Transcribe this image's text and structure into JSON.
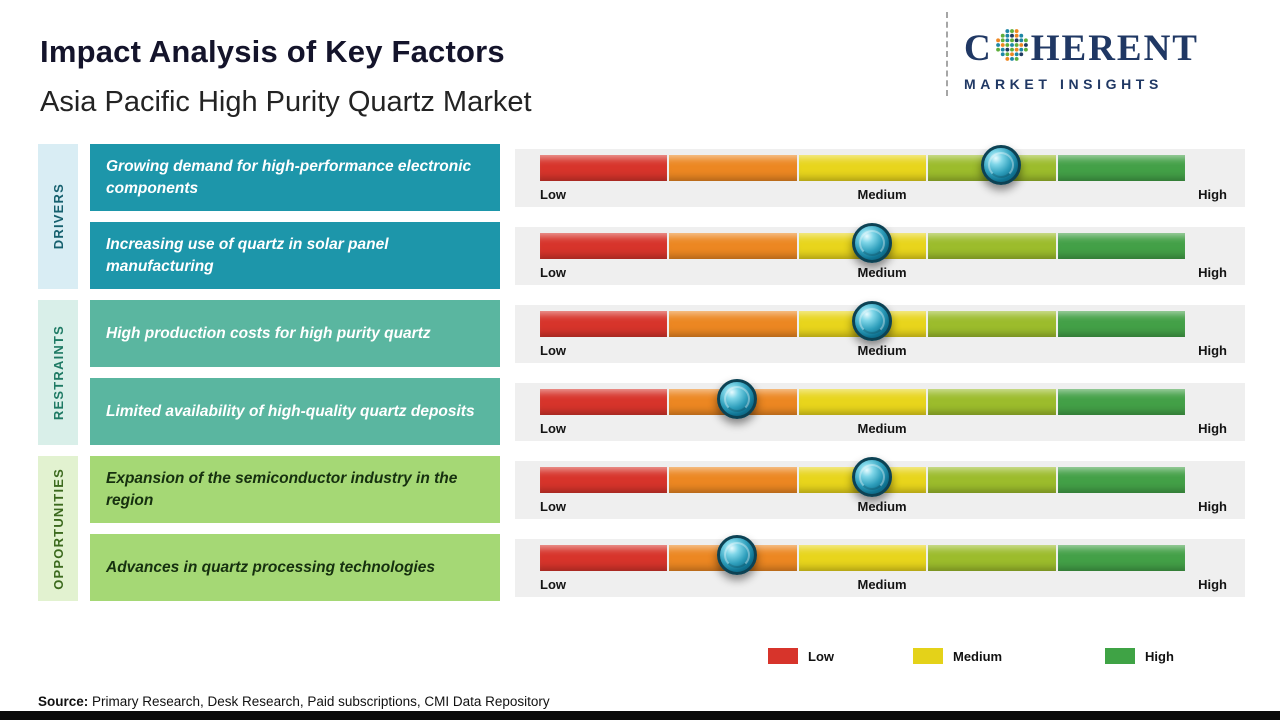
{
  "header": {
    "title": "Impact Analysis of Key Factors",
    "subtitle": "Asia Pacific High Purity Quartz Market"
  },
  "logo": {
    "word_prefix": "C",
    "word_suffix": "HERENT",
    "tagline": "MARKET INSIGHTS",
    "globe_icon": "dotted-globe-o",
    "color": "#203864"
  },
  "groups": [
    {
      "label": "DRIVERS"
    },
    {
      "label": "RESTRAINTS"
    },
    {
      "label": "OPPORTUNITIES"
    }
  ],
  "scale": {
    "labels": [
      "Low",
      "Medium",
      "High"
    ],
    "colors": [
      "#d7342b",
      "#ec8722",
      "#e8d51c",
      "#9cbc2c",
      "#43a047"
    ]
  },
  "chart_data": {
    "type": "bar",
    "title": "Impact Analysis of Key Factors",
    "subtitle": "Asia Pacific High Purity Quartz Market",
    "scale_labels": [
      "Low",
      "Medium",
      "High"
    ],
    "scale_range": [
      0,
      100
    ],
    "legend_position": "bottom",
    "series": [
      {
        "group": "Drivers",
        "factor": "Growing demand for high-performance electronic components",
        "impact_pct": 72,
        "impact_level": "Medium-High"
      },
      {
        "group": "Drivers",
        "factor": "Increasing use of quartz in solar panel manufacturing",
        "impact_pct": 52,
        "impact_level": "Medium"
      },
      {
        "group": "Restraints",
        "factor": "High production costs for high purity quartz",
        "impact_pct": 52,
        "impact_level": "Medium"
      },
      {
        "group": "Restraints",
        "factor": "Limited availability of high-quality quartz deposits",
        "impact_pct": 31,
        "impact_level": "Low-Medium"
      },
      {
        "group": "Opportunities",
        "factor": "Expansion of the semiconductor industry in the region",
        "impact_pct": 52,
        "impact_level": "Medium"
      },
      {
        "group": "Opportunities",
        "factor": "Advances in quartz processing technologies",
        "impact_pct": 31,
        "impact_level": "Low-Medium"
      }
    ],
    "legend": [
      {
        "label": "Low",
        "color": "#d7342b"
      },
      {
        "label": "Medium",
        "color": "#e4d219"
      },
      {
        "label": "High",
        "color": "#3fa345"
      }
    ]
  },
  "source": {
    "label": "Source:",
    "text": " Primary Research, Desk Research, Paid subscriptions, CMI Data Repository"
  },
  "colors": {
    "driver_box": "#1d96aa",
    "restraint_box": "#5ab6a0",
    "opportunity_box": "#a5d875",
    "panel_bg": "#efefef",
    "marker": "#0f7392",
    "footer": "#0a0a0a"
  }
}
